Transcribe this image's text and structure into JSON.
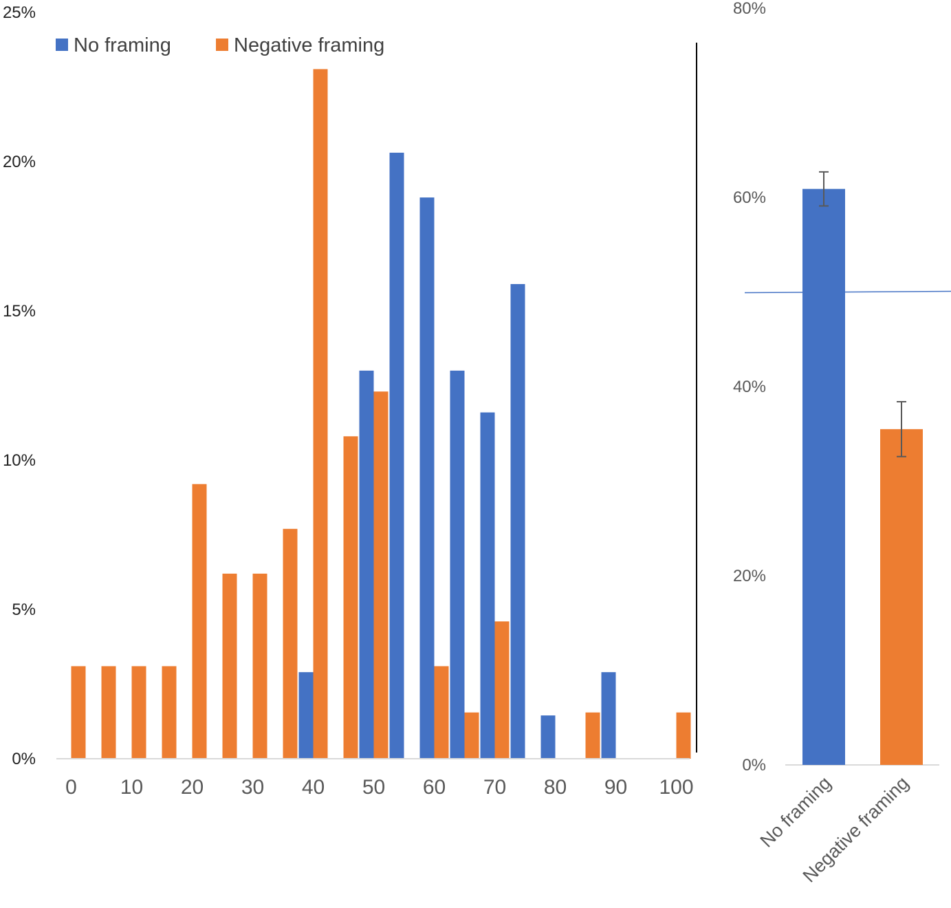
{
  "colors": {
    "no_framing": "#4472C4",
    "negative_framing": "#ED7D31",
    "axis": "#D9D9D9",
    "divider": "#000000",
    "error_bar": "#595959"
  },
  "chart_data": [
    {
      "type": "bar",
      "categories": [
        "0",
        "5",
        "10",
        "15",
        "20",
        "25",
        "30",
        "35",
        "40",
        "45",
        "50",
        "55",
        "60",
        "65",
        "70",
        "75",
        "80",
        "85",
        "90",
        "95",
        "100"
      ],
      "x_tick_labels": [
        "0",
        "10",
        "20",
        "30",
        "40",
        "50",
        "60",
        "70",
        "80",
        "90",
        "100"
      ],
      "y_tick_labels": [
        "0%",
        "5%",
        "10%",
        "15%",
        "20%",
        "25%"
      ],
      "ylim": [
        0,
        25
      ],
      "legend": {
        "position": "top-left",
        "entries": [
          "No framing",
          "Negative framing"
        ]
      },
      "series": [
        {
          "name": "No framing",
          "values": [
            0,
            0,
            0,
            0,
            0,
            0,
            0,
            0,
            2.9,
            0,
            13.0,
            20.3,
            18.8,
            13.0,
            11.6,
            15.9,
            1.45,
            0,
            2.9,
            0,
            0
          ]
        },
        {
          "name": "Negative framing",
          "values": [
            3.1,
            3.1,
            3.1,
            3.1,
            9.2,
            6.2,
            6.2,
            7.7,
            23.1,
            10.8,
            12.3,
            0,
            3.1,
            1.55,
            4.6,
            0,
            0,
            1.55,
            0,
            0,
            1.55
          ]
        }
      ]
    },
    {
      "type": "bar",
      "categories": [
        "No framing",
        "Negative framing"
      ],
      "values": [
        60.9,
        35.5
      ],
      "errors": [
        1.8,
        2.9
      ],
      "reference_line": 50,
      "y_tick_labels": [
        "0%",
        "20%",
        "40%",
        "60%",
        "80%"
      ],
      "ylim": [
        0,
        80
      ]
    }
  ]
}
